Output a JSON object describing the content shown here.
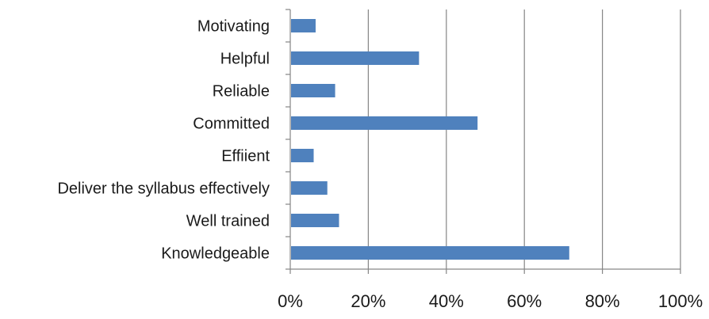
{
  "chart_data": {
    "type": "bar",
    "orientation": "horizontal",
    "title": "",
    "xlabel": "",
    "ylabel": "",
    "categories": [
      "Motivating",
      "Helpful",
      "Reliable",
      "Committed",
      "Effiient",
      "Deliver the syllabus effectively",
      "Well trained",
      "Knowledgeable"
    ],
    "series": [
      {
        "values": [
          6.5,
          33,
          11.5,
          48,
          6,
          9.5,
          12.5,
          71.5
        ]
      }
    ],
    "xlim": [
      0,
      100
    ],
    "xticks": [
      0,
      20,
      40,
      60,
      80,
      100
    ],
    "xtick_labels": [
      "0%",
      "20%",
      "40%",
      "60%",
      "80%",
      "100%"
    ],
    "grid": "vertical",
    "legend": "none",
    "colors": {
      "bar": "#4f81bd",
      "grid": "#868686",
      "axis": "#868686",
      "text": "#1a1a1a"
    }
  }
}
